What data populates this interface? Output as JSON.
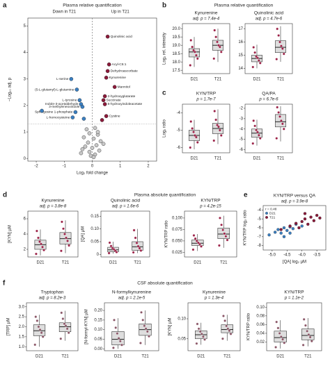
{
  "chart_data": [
    {
      "type": "volcano",
      "panel_letter": "a",
      "title": "Plasma relative quantification",
      "annotations": [
        "Down in T21",
        "Up in T21"
      ],
      "xlabel": "Log₂ fold change",
      "ylabel": "−Log₁₀ adj. p",
      "xlim": [
        -2.3,
        2.3
      ],
      "ylim": [
        -0.1,
        5.3
      ],
      "xticks": [
        -2,
        -1,
        0,
        1,
        2
      ],
      "yticks": [
        0,
        1,
        2,
        3,
        4,
        5
      ],
      "threshold_y": 1.3,
      "x": [
        0.55,
        0.6,
        0.55,
        0.5,
        0.8,
        0.45,
        0.4,
        0.45,
        0.5,
        -0.75,
        -0.55,
        -0.45,
        -0.4,
        -0.35,
        -0.6,
        -0.7,
        -1.8,
        -0.3,
        0.35,
        -0.2,
        0.1,
        -0.1,
        0.2,
        -0.3,
        0.05,
        0.3,
        -0.15,
        0.15,
        -0.25,
        0.0,
        0.25,
        -0.1,
        0.1,
        -0.05,
        0.05,
        -0.35,
        0.4,
        -0.4,
        0.2
      ],
      "values": [
        4.6,
        3.55,
        3.3,
        3.05,
        2.7,
        2.35,
        2.2,
        2.05,
        1.6,
        3.0,
        2.6,
        2.2,
        2.05,
        1.95,
        1.75,
        1.55,
        1.8,
        1.5,
        1.45,
        1.1,
        1.15,
        0.95,
        0.9,
        0.8,
        0.75,
        0.65,
        0.6,
        0.5,
        0.45,
        0.4,
        0.3,
        0.25,
        0.15,
        0.1,
        0.05,
        0.35,
        0.55,
        0.2,
        1.0
      ],
      "colors": [
        "#8b1a3a",
        "#8b1a3a",
        "#8b1a3a",
        "#8b1a3a",
        "#8b1a3a",
        "#8b1a3a",
        "#8b1a3a",
        "#8b1a3a",
        "#8b1a3a",
        "#3a7fc1",
        "#3a7fc1",
        "#3a7fc1",
        "#3a7fc1",
        "#3a7fc1",
        "#3a7fc1",
        "#3a7fc1",
        "#3a7fc1",
        "#3a7fc1",
        "#8b1a3a",
        "#c8c8c8",
        "#c8c8c8",
        "#c8c8c8",
        "#c8c8c8",
        "#c8c8c8",
        "#c8c8c8",
        "#c8c8c8",
        "#c8c8c8",
        "#c8c8c8",
        "#c8c8c8",
        "#c8c8c8",
        "#c8c8c8",
        "#c8c8c8",
        "#c8c8c8",
        "#c8c8c8",
        "#c8c8c8",
        "#c8c8c8",
        "#c8c8c8",
        "#c8c8c8",
        "#c8c8c8"
      ],
      "labels": [
        "Quinolinic acid",
        "Acyl-C5:1",
        "Dehydroascorbate",
        "Kynurenine",
        "Mannitol",
        "2-hydroxyglutarate",
        "Succinate",
        "5-hydroxyindoleacetate",
        "Cystine",
        "L-serine",
        "(5-L-glutamyl)-L-glutamine",
        "L-tyrosine",
        "Indole-3-acetaldehyde",
        "3-methyleneoxindole",
        "Sphingosine 1-phosphate",
        "L-homocysteine",
        null,
        null,
        null,
        null,
        null,
        null,
        null,
        null,
        null,
        null,
        null,
        null,
        null,
        null,
        null,
        null,
        null,
        null,
        null,
        null,
        null,
        null,
        null
      ]
    },
    {
      "type": "box",
      "panel_letter": "b",
      "section_title": "Plasma relative quantification",
      "title": "Kynurenine",
      "subtitle": "adj. p = 7.4e-4",
      "ylabel": "Log₂ rel. intensity",
      "ylim": [
        17.3,
        20.3
      ],
      "yticks": [
        17.5,
        {
          "value": 18,
          "label": "18.0"
        },
        18.5,
        {
          "value": 19,
          "label": "19.0"
        },
        19.5,
        {
          "value": 20,
          "label": "20.0"
        }
      ],
      "categories": [
        "D21",
        "T21"
      ],
      "point_color": "#9b2046",
      "boxes": [
        {
          "low": 17.7,
          "q1": 18.3,
          "median": 18.6,
          "q3": 18.8,
          "high": 19.5,
          "points": [
            17.8,
            18.2,
            18.4,
            18.6,
            18.7,
            18.9,
            19.3
          ]
        },
        {
          "low": 18.0,
          "q1": 18.7,
          "median": 19.0,
          "q3": 19.3,
          "high": 20.0,
          "points": [
            18.2,
            18.6,
            18.9,
            19.0,
            19.2,
            19.5,
            19.9
          ]
        }
      ]
    },
    {
      "type": "box",
      "title": "Quinolinic acid",
      "subtitle": "adj. p = 4.7e-6",
      "ylim": [
        13.6,
        17.4
      ],
      "yticks": [
        14,
        15,
        16,
        17
      ],
      "categories": [
        "D21",
        "T21"
      ],
      "point_color": "#9b2046",
      "boxes": [
        {
          "low": 14.0,
          "q1": 14.5,
          "median": 14.75,
          "q3": 15.0,
          "high": 15.8,
          "points": [
            14.1,
            14.4,
            14.6,
            14.8,
            14.9,
            15.2,
            15.6
          ]
        },
        {
          "low": 14.5,
          "q1": 15.2,
          "median": 15.6,
          "q3": 16.1,
          "high": 17.2,
          "points": [
            14.7,
            15.1,
            15.5,
            15.7,
            16.0,
            16.5,
            17.0
          ]
        }
      ]
    },
    {
      "type": "box",
      "panel_letter": "c",
      "title": "KYN/TRP",
      "subtitle": "p = 1.7e-7",
      "ylabel": "Log₂ ratio",
      "ylim": [
        -6.3,
        -3.5
      ],
      "yticks": [
        -6,
        -5,
        -4
      ],
      "categories": [
        "D21",
        "T21"
      ],
      "point_color": "#9b2046",
      "boxes": [
        {
          "low": -6.1,
          "q1": -5.6,
          "median": -5.3,
          "q3": -5.0,
          "high": -4.4,
          "points": [
            -6.0,
            -5.7,
            -5.4,
            -5.3,
            -5.1,
            -4.9,
            -4.5
          ]
        },
        {
          "low": -5.8,
          "q1": -5.2,
          "median": -4.9,
          "q3": -4.6,
          "high": -3.8,
          "points": [
            -5.6,
            -5.3,
            -5.0,
            -4.8,
            -4.7,
            -4.4,
            -3.9
          ]
        }
      ]
    },
    {
      "type": "box",
      "title": "QA/PA",
      "subtitle": "p = 6.7e-6",
      "ylim": [
        -6.3,
        -1.6
      ],
      "yticks": [
        -6,
        -5,
        -4,
        -3,
        -2
      ],
      "categories": [
        "D21",
        "T21"
      ],
      "point_color": "#9b2046",
      "boxes": [
        {
          "low": -5.6,
          "q1": -4.8,
          "median": -4.4,
          "q3": -4.0,
          "high": -3.1,
          "points": [
            -5.4,
            -4.9,
            -4.6,
            -4.3,
            -4.1,
            -3.7,
            -3.2
          ]
        },
        {
          "low": -5.2,
          "q1": -3.8,
          "median": -3.3,
          "q3": -2.6,
          "high": -1.8,
          "points": [
            -4.9,
            -4.0,
            -3.5,
            -3.2,
            -2.8,
            -2.4,
            -1.9
          ]
        }
      ]
    },
    {
      "type": "box",
      "panel_letter": "d",
      "section_title": "Plasma absolute quantification",
      "title": "Kynurenine",
      "subtitle": "adj. p = 3.8e-8",
      "ylabel": "[KYN] µM",
      "ylim": [
        1,
        7
      ],
      "yticks": [
        2,
        4,
        6
      ],
      "categories": [
        "D21",
        "T21"
      ],
      "point_color": "#9b2046",
      "boxes": [
        {
          "low": 1.2,
          "q1": 2.0,
          "median": 2.6,
          "q3": 3.2,
          "high": 4.6,
          "points": [
            1.4,
            1.9,
            2.3,
            2.7,
            3.0,
            3.5,
            4.4
          ]
        },
        {
          "low": 1.5,
          "q1": 2.7,
          "median": 3.4,
          "q3": 4.2,
          "high": 5.8,
          "points": [
            1.8,
            2.5,
            3.1,
            3.5,
            4.0,
            4.7,
            5.6
          ]
        }
      ]
    },
    {
      "type": "box",
      "title": "Quinolinic acid",
      "subtitle": "adj. p = 1.6e-6",
      "ylabel": "[QA] µM",
      "ylim": [
        -0.01,
        0.17
      ],
      "yticks": [
        0,
        0.05,
        {
          "value": 0.1,
          "label": "0.10"
        },
        0.15
      ],
      "categories": [
        "D21",
        "T21"
      ],
      "point_color": "#9b2046",
      "boxes": [
        {
          "low": 0.003,
          "q1": 0.01,
          "median": 0.018,
          "q3": 0.028,
          "high": 0.05,
          "points": [
            0.005,
            0.009,
            0.015,
            0.02,
            0.025,
            0.033,
            0.046
          ]
        },
        {
          "low": 0.005,
          "q1": 0.016,
          "median": 0.03,
          "q3": 0.05,
          "high": 0.1,
          "points": [
            0.008,
            0.015,
            0.024,
            0.032,
            0.045,
            0.065,
            0.095
          ]
        }
      ]
    },
    {
      "type": "box",
      "title": "KYN/TRP",
      "subtitle": "p = 4.2e-15",
      "ylabel": "KYN/TRP ratio",
      "ylim": [
        0.015,
        0.115
      ],
      "yticks": [
        0.025,
        {
          "value": 0.05,
          "label": "0.050"
        },
        0.075,
        {
          "value": 0.1,
          "label": "0.100"
        }
      ],
      "categories": [
        "D21",
        "T21"
      ],
      "point_color": "#9b2046",
      "boxes": [
        {
          "low": 0.028,
          "q1": 0.04,
          "median": 0.045,
          "q3": 0.052,
          "high": 0.065,
          "points": [
            0.031,
            0.038,
            0.043,
            0.046,
            0.05,
            0.055,
            0.062
          ]
        },
        {
          "low": 0.035,
          "q1": 0.055,
          "median": 0.065,
          "q3": 0.078,
          "high": 0.105,
          "points": [
            0.04,
            0.052,
            0.06,
            0.066,
            0.074,
            0.085,
            0.1
          ]
        }
      ]
    },
    {
      "type": "scatter",
      "panel_letter": "e",
      "title": "KYN/TRP versus QA",
      "subtitle": "adj. p = 3.9e-8",
      "annotation": "r = 0.48",
      "xlabel": "[QA] log₂ µM",
      "ylabel": "KYN/TRP log₂ ratio",
      "xlim": [
        -5.3,
        -3.2
      ],
      "ylim": [
        -8.5,
        -3.5
      ],
      "xticks": [
        {
          "value": -5,
          "label": "-5.0"
        },
        -4.5,
        {
          "value": -4,
          "label": "-4.0"
        },
        -3.5
      ],
      "yticks": [
        -8,
        -7,
        -6,
        -5,
        -4
      ],
      "legend": "top-left",
      "series": [
        {
          "name": "D21",
          "color": "#3a7fc1",
          "x": [
            -5.1,
            -4.9,
            -4.8,
            -4.7,
            -4.6,
            -4.5,
            -4.4,
            -4.3,
            -4.2,
            -4.0,
            -4.6,
            -4.4
          ],
          "values": [
            -6.8,
            -6.5,
            -6.2,
            -6.6,
            -6.0,
            -6.3,
            -5.9,
            -6.1,
            -5.6,
            -5.8,
            -7.0,
            -6.6
          ]
        },
        {
          "name": "T21",
          "color": "#8b1a3a",
          "x": [
            -4.7,
            -4.4,
            -4.2,
            -4.0,
            -3.9,
            -3.8,
            -3.7,
            -3.6,
            -3.5,
            -3.4,
            -4.1,
            -3.9
          ],
          "values": [
            -6.2,
            -5.8,
            -5.5,
            -5.3,
            -5.0,
            -5.6,
            -4.8,
            -5.2,
            -4.6,
            -4.9,
            -6.0,
            -4.4
          ]
        }
      ]
    },
    {
      "type": "box",
      "panel_letter": "f",
      "section_title": "CSF absolute quantification",
      "title": "Tryptophan",
      "subtitle": "adj. p = 8.2e-3",
      "ylabel": "[TRP] µM",
      "ylim": [
        0.8,
        3.2
      ],
      "yticks": [
        {
          "value": 1,
          "label": "1.0"
        },
        1.5,
        {
          "value": 2,
          "label": "2.0"
        },
        2.5,
        {
          "value": 3,
          "label": "3.0"
        }
      ],
      "categories": [
        "D21",
        "T21"
      ],
      "point_color": "#8a5566",
      "boxes": [
        {
          "low": 1.0,
          "q1": 1.55,
          "median": 1.8,
          "q3": 2.1,
          "high": 2.6,
          "points": [
            1.1,
            1.5,
            1.7,
            1.85,
            2.0,
            2.3,
            2.5
          ]
        },
        {
          "low": 1.3,
          "q1": 1.75,
          "median": 2.0,
          "q3": 2.2,
          "high": 2.8,
          "points": [
            1.4,
            1.7,
            1.9,
            2.05,
            2.15,
            2.4,
            2.7
          ]
        }
      ]
    },
    {
      "type": "box",
      "title": "N-formylkynurenine",
      "subtitle": "adj. p = 2.1e-5",
      "ylabel": "[N-formyl-KYN] µM",
      "ylim": [
        -0.01,
        0.24
      ],
      "yticks": [
        {
          "value": 0,
          "label": "0.00"
        },
        0.05,
        {
          "value": 0.1,
          "label": "0.10"
        },
        0.15,
        {
          "value": 0.2,
          "label": "0.20"
        }
      ],
      "categories": [
        "D21",
        "T21"
      ],
      "point_color": "#8a5566",
      "boxes": [
        {
          "low": 0.0,
          "q1": 0.02,
          "median": 0.05,
          "q3": 0.09,
          "high": 0.16,
          "points": [
            0.005,
            0.02,
            0.04,
            0.055,
            0.08,
            0.11,
            0.15
          ]
        },
        {
          "low": 0.02,
          "q1": 0.07,
          "median": 0.1,
          "q3": 0.13,
          "high": 0.2,
          "points": [
            0.03,
            0.065,
            0.09,
            0.105,
            0.12,
            0.15,
            0.19
          ]
        }
      ]
    },
    {
      "type": "box",
      "title": "Kynurenine",
      "subtitle": "p = 1.3e-4",
      "ylabel": "[KYN] µM",
      "ylim": [
        0.02,
        0.14
      ],
      "yticks": [
        0.05,
        {
          "value": 0.1,
          "label": "0.10"
        }
      ],
      "categories": [
        "D21",
        "T21"
      ],
      "point_color": "#8a5566",
      "boxes": [
        {
          "low": 0.035,
          "q1": 0.05,
          "median": 0.06,
          "q3": 0.07,
          "high": 0.09,
          "points": [
            0.038,
            0.048,
            0.055,
            0.062,
            0.068,
            0.075,
            0.087
          ]
        },
        {
          "low": 0.045,
          "q1": 0.065,
          "median": 0.073,
          "q3": 0.085,
          "high": 0.11,
          "points": [
            0.05,
            0.062,
            0.07,
            0.075,
            0.082,
            0.095,
            0.107
          ]
        }
      ]
    },
    {
      "type": "box",
      "title": "KYN/TRP",
      "subtitle": "p = 1.1e-2",
      "ylabel": "KYN/TRP ratio",
      "ylim": [
        0,
        0.11
      ],
      "yticks": [
        0.02,
        0.04,
        0.06,
        0.08,
        {
          "value": 0.1,
          "label": "0.10"
        }
      ],
      "categories": [
        "D21",
        "T21"
      ],
      "point_color": "#8a5566",
      "boxes": [
        {
          "low": 0.005,
          "q1": 0.02,
          "median": 0.03,
          "q3": 0.045,
          "high": 0.07,
          "points": [
            0.008,
            0.018,
            0.026,
            0.032,
            0.04,
            0.052,
            0.066
          ]
        },
        {
          "low": 0.01,
          "q1": 0.025,
          "median": 0.035,
          "q3": 0.05,
          "high": 0.075,
          "points": [
            0.013,
            0.022,
            0.031,
            0.037,
            0.045,
            0.058,
            0.072
          ]
        }
      ]
    }
  ]
}
